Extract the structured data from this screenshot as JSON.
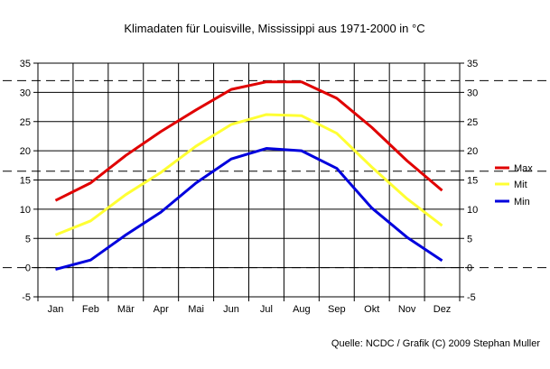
{
  "chart_data": {
    "type": "line",
    "title": "Klimadaten für Louisville, Mississippi aus 1971-2000 in °C",
    "categories": [
      "Jan",
      "Feb",
      "Mär",
      "Apr",
      "Mai",
      "Jun",
      "Jul",
      "Aug",
      "Sep",
      "Okt",
      "Nov",
      "Dez"
    ],
    "series": [
      {
        "name": "Max",
        "color": "#e00000",
        "values": [
          11.5,
          14.5,
          19.2,
          23.3,
          27.0,
          30.5,
          31.8,
          31.8,
          29.0,
          24.0,
          18.3,
          13.2
        ]
      },
      {
        "name": "Mit",
        "color": "#ffff33",
        "values": [
          5.6,
          8.0,
          12.5,
          16.3,
          20.8,
          24.5,
          26.2,
          26.0,
          23.0,
          17.2,
          11.8,
          7.2
        ]
      },
      {
        "name": "Min",
        "color": "#0000dd",
        "values": [
          -0.3,
          1.3,
          5.6,
          9.5,
          14.5,
          18.6,
          20.4,
          20.0,
          17.0,
          10.2,
          5.2,
          1.2
        ]
      }
    ],
    "yticks": [
      -5,
      0,
      5,
      10,
      15,
      20,
      25,
      30,
      35
    ],
    "ylim": [
      -5,
      35
    ],
    "reference_lines": [
      0,
      16.5,
      32
    ],
    "grid": true,
    "legend_position": "right",
    "source": "Quelle: NCDC / Grafik (C) 2009 Stephan Muller"
  }
}
